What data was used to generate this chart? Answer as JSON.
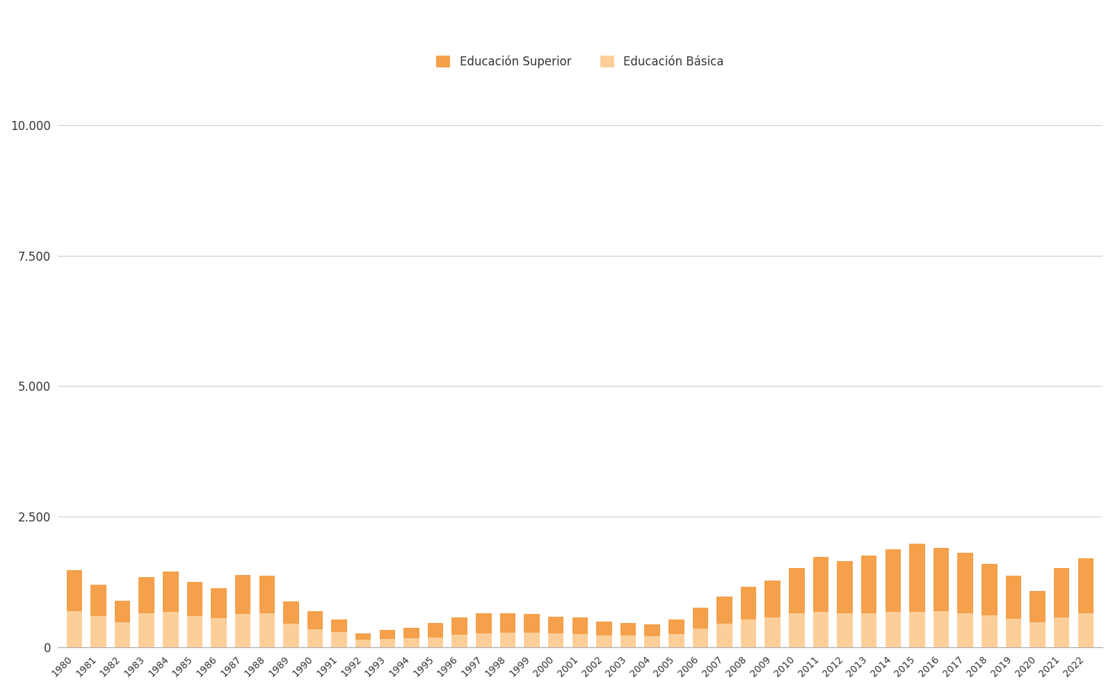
{
  "years": [
    1980,
    1981,
    1982,
    1983,
    1984,
    1985,
    1986,
    1987,
    1988,
    1989,
    1990,
    1991,
    1992,
    1993,
    1994,
    1995,
    1996,
    1997,
    1998,
    1999,
    2000,
    2001,
    2002,
    2003,
    2004,
    2005,
    2006,
    2007,
    2008,
    2009,
    2010,
    2011,
    2012,
    2013,
    2014,
    2015,
    2016,
    2017,
    2018,
    2019,
    2020,
    2021,
    2022
  ],
  "superior": [
    780,
    600,
    420,
    700,
    780,
    650,
    580,
    750,
    720,
    430,
    350,
    250,
    120,
    180,
    200,
    280,
    340,
    390,
    370,
    360,
    320,
    310,
    260,
    240,
    220,
    280,
    400,
    520,
    620,
    700,
    870,
    1050,
    1000,
    1100,
    1200,
    1300,
    1200,
    1150,
    990,
    820,
    600,
    950,
    1050
  ],
  "basica": [
    700,
    600,
    480,
    650,
    680,
    600,
    560,
    640,
    650,
    450,
    350,
    290,
    150,
    160,
    170,
    190,
    240,
    270,
    280,
    280,
    270,
    260,
    230,
    230,
    220,
    260,
    360,
    450,
    540,
    580,
    650,
    680,
    660,
    660,
    680,
    680,
    700,
    660,
    610,
    550,
    480,
    570,
    660
  ],
  "superior_color": "#F5A04B",
  "basica_color": "#FCCF9A",
  "background_color": "#ffffff",
  "legend_superior": "Educación Superior",
  "legend_basica": "Educación Básica",
  "yticks": [
    0,
    2500,
    5000,
    7500,
    10000
  ],
  "ylim": [
    0,
    10800
  ],
  "grid_color": "#cccccc",
  "text_color": "#333333"
}
